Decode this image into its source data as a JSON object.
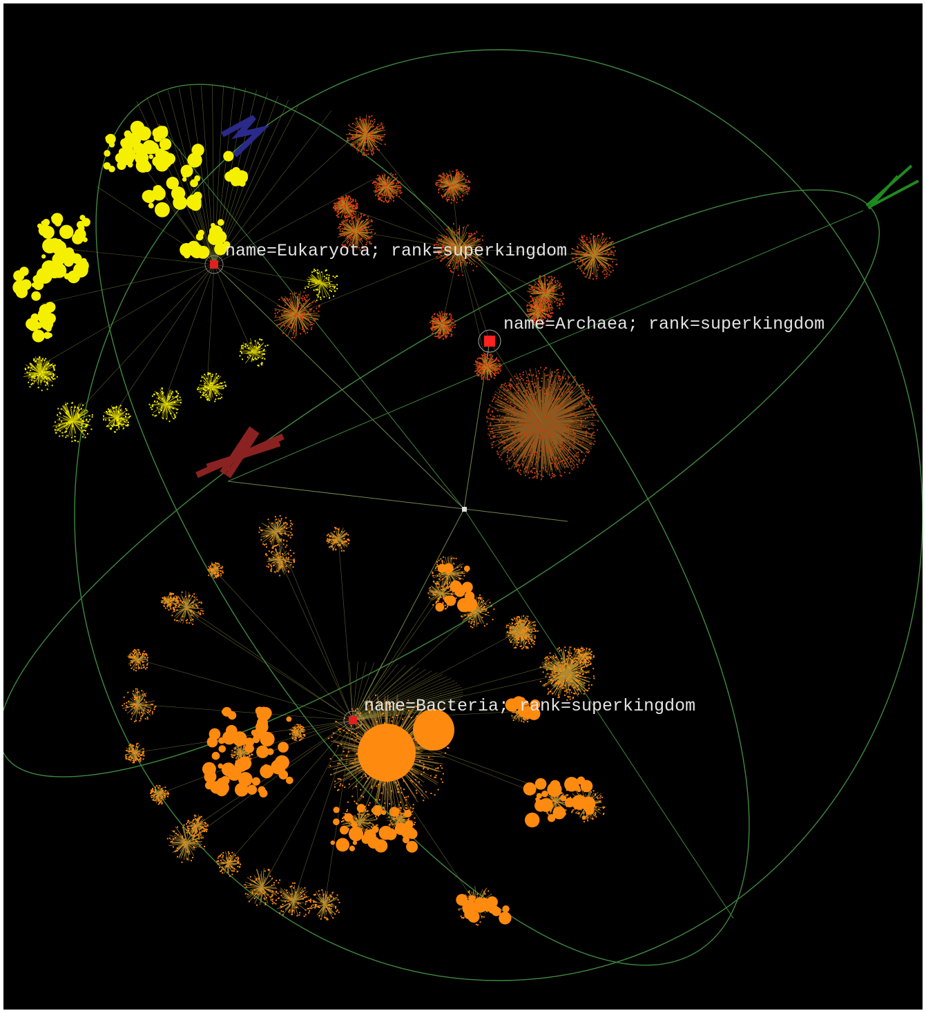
{
  "nodes": [
    {
      "label": "name=Eukaryota; rank=superkingdom"
    },
    {
      "label": "name=Archaea; rank=superkingdom"
    },
    {
      "label": "name=Bacteria; rank=superkingdom"
    }
  ]
}
